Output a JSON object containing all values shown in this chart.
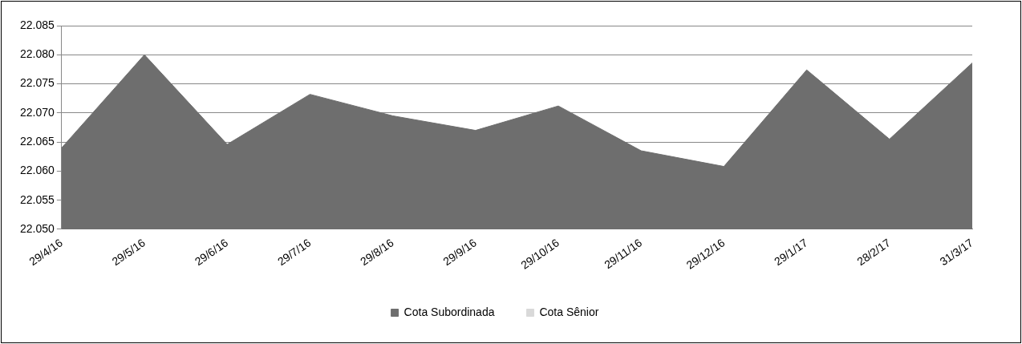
{
  "chart_data": {
    "type": "area",
    "categories": [
      "29/4/16",
      "29/5/16",
      "29/6/16",
      "29/7/16",
      "29/8/16",
      "29/9/16",
      "29/10/16",
      "29/11/16",
      "29/12/16",
      "29/1/17",
      "28/2/17",
      "31/3/17"
    ],
    "series": [
      {
        "name": "Cota Subordinada",
        "color": "#6e6e6e",
        "values": [
          22.064,
          22.08,
          22.0646,
          22.0732,
          22.0695,
          22.067,
          22.0712,
          22.0635,
          22.0608,
          22.0774,
          22.0655,
          22.0786
        ]
      },
      {
        "name": "Cota Sênior",
        "color": "#d9d9d9",
        "values": [
          null,
          null,
          null,
          null,
          null,
          null,
          null,
          null,
          null,
          null,
          null,
          null
        ]
      }
    ],
    "ylim": [
      22.05,
      22.085
    ],
    "yticks": [
      {
        "value": 22.05,
        "label": "22.050"
      },
      22.055,
      {
        "value": 22.06,
        "label": "22.060"
      },
      22.065,
      {
        "value": 22.07,
        "label": "22.070"
      },
      22.075,
      {
        "value": 22.08,
        "label": "22.080"
      },
      22.085
    ],
    "grid": "y",
    "legend": "bottom"
  }
}
